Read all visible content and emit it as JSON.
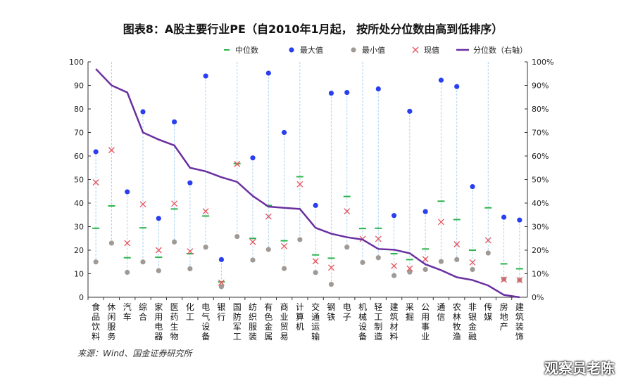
{
  "title": "图表8：A股主要行业PE（自2010年1月起， 按所处分位数由高到低排序）",
  "source": "来源：Wind、国金证券研究所",
  "watermark": "观察员老陈",
  "chart_data": {
    "type": "scatter",
    "title": "图表8：A股主要行业PE（自2010年1月起， 按所处分位数由高到低排序）",
    "ylim": [
      0,
      100
    ],
    "y2lim": [
      0,
      100
    ],
    "yticks": [
      0,
      10,
      20,
      30,
      40,
      50,
      60,
      70,
      80,
      90,
      100
    ],
    "y2ticks": [
      "0%",
      "10%",
      "20%",
      "30%",
      "40%",
      "50%",
      "60%",
      "70%",
      "80%",
      "90%",
      "100%"
    ],
    "legend_placement": "top",
    "legend": [
      "中位数",
      "最大值",
      "最小值",
      "现值",
      "分位数（右轴）"
    ],
    "colors": {
      "median": "#2bb34a",
      "max": "#2a3ff0",
      "min": "#a09a96",
      "current": "#e8525a",
      "percentile": "#6a2fa0",
      "range": "#a9d2ef"
    },
    "categories": [
      "食品饮料",
      "休闲服务",
      "汽车",
      "综合",
      "家用电器",
      "医药生物",
      "化工",
      "电气设备",
      "银行",
      "国防军工",
      "纺织服装",
      "有色金属",
      "商业贸易",
      "计算机",
      "交通运输",
      "钢铁",
      "电子",
      "机械设备",
      "轻工制造",
      "建筑材料",
      "采掘",
      "公用事业",
      "通信",
      "农林牧渔",
      "非银金融",
      "传媒",
      "房地产",
      "建筑装饰"
    ],
    "series": [
      {
        "name": "中位数",
        "values": [
          29.3,
          38.8,
          16.8,
          29.5,
          17,
          37.5,
          18.5,
          34.5,
          6.5,
          56.8,
          25,
          39,
          24,
          51.2,
          18,
          16.6,
          42.8,
          29.2,
          29.3,
          18.5,
          16,
          20.5,
          40.8,
          33,
          20,
          38,
          14.2,
          12.1
        ]
      },
      {
        "name": "最大值",
        "values": [
          61.8,
          null,
          44.8,
          78.8,
          33.5,
          74.5,
          48.6,
          94,
          16,
          null,
          59.2,
          95.2,
          70,
          null,
          39,
          86.7,
          87,
          null,
          88.5,
          34.7,
          79,
          36.4,
          92.2,
          89.5,
          47,
          null,
          34,
          32.8
        ]
      },
      {
        "name": "最小值",
        "values": [
          15,
          23,
          10.6,
          15,
          11.3,
          23.5,
          12.1,
          21.3,
          4.5,
          25.8,
          15.8,
          20.3,
          12.2,
          24.5,
          10.5,
          5.5,
          21.3,
          14.8,
          16.8,
          9.2,
          10.7,
          11.8,
          15.2,
          16,
          11.8,
          18.8,
          7.7,
          7.3
        ]
      },
      {
        "name": "现值",
        "values": [
          48.8,
          62.5,
          23,
          39.5,
          20,
          39.8,
          19.5,
          36.5,
          6.2,
          56.6,
          23.5,
          34.3,
          21.7,
          48,
          15.3,
          12.6,
          36.5,
          24.8,
          24.8,
          13.3,
          12.2,
          16.2,
          32,
          22.5,
          14.8,
          24.2,
          7.5,
          7.3
        ]
      },
      {
        "name": "分位数（右轴）",
        "axis": "right",
        "values": [
          97,
          90,
          87,
          70,
          67,
          64.5,
          55,
          53.5,
          51,
          49,
          43,
          38.5,
          38,
          37.5,
          29.5,
          27,
          25.5,
          24.5,
          20.5,
          20.2,
          18.7,
          14,
          11.5,
          8.5,
          7.3,
          5,
          1,
          0
        ]
      }
    ]
  }
}
